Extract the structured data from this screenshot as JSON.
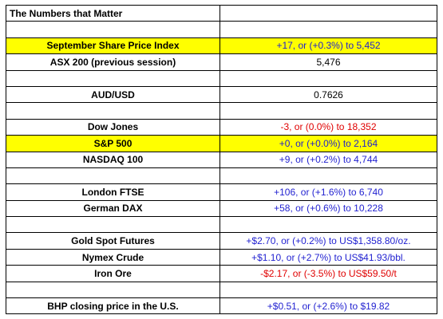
{
  "table": {
    "title": "The Numbers that Matter",
    "highlight_color": "#ffff00",
    "sections": [
      [
        {
          "label": "September Share Price Index",
          "value": "+17, or (+0.3%) to 5,452",
          "color": "#1f1fd0",
          "highlight": true
        },
        {
          "label": "ASX 200 (previous session)",
          "value": "5,476",
          "color": "#000000"
        }
      ],
      [
        {
          "label": "AUD/USD",
          "value": "0.7626",
          "color": "#000000"
        }
      ],
      [
        {
          "label": "Dow Jones",
          "value": "-3, or (0.0%) to 18,352",
          "color": "#e00000"
        },
        {
          "label": "S&P 500",
          "value": "+0, or (+0.0%) to 2,164",
          "color": "#1f1fd0",
          "highlight": true
        },
        {
          "label": "NASDAQ 100",
          "value": "+9, or (+0.2%) to 4,744",
          "color": "#1f1fd0"
        }
      ],
      [
        {
          "label": "London FTSE",
          "value": "+106, or (+1.6%) to 6,740",
          "color": "#1f1fd0"
        },
        {
          "label": "German DAX",
          "value": "+58, or (+0.6%) to 10,228",
          "color": "#1f1fd0"
        }
      ],
      [
        {
          "label": "Gold Spot Futures",
          "value": "+$2.70, or (+0.2%) to US$1,358.80/oz.",
          "color": "#1f1fd0"
        },
        {
          "label": "Nymex Crude",
          "value": "+$1.10, or (+2.7%) to US$41.93/bbl.",
          "color": "#1f1fd0"
        },
        {
          "label": "Iron Ore",
          "value": "-$2.17, or (-3.5%) to US$59.50/t",
          "color": "#e00000"
        }
      ],
      [
        {
          "label": "BHP closing price in the U.S.",
          "value": "+$0.51, or (+2.6%) to $19.82",
          "color": "#1f1fd0"
        }
      ]
    ]
  }
}
